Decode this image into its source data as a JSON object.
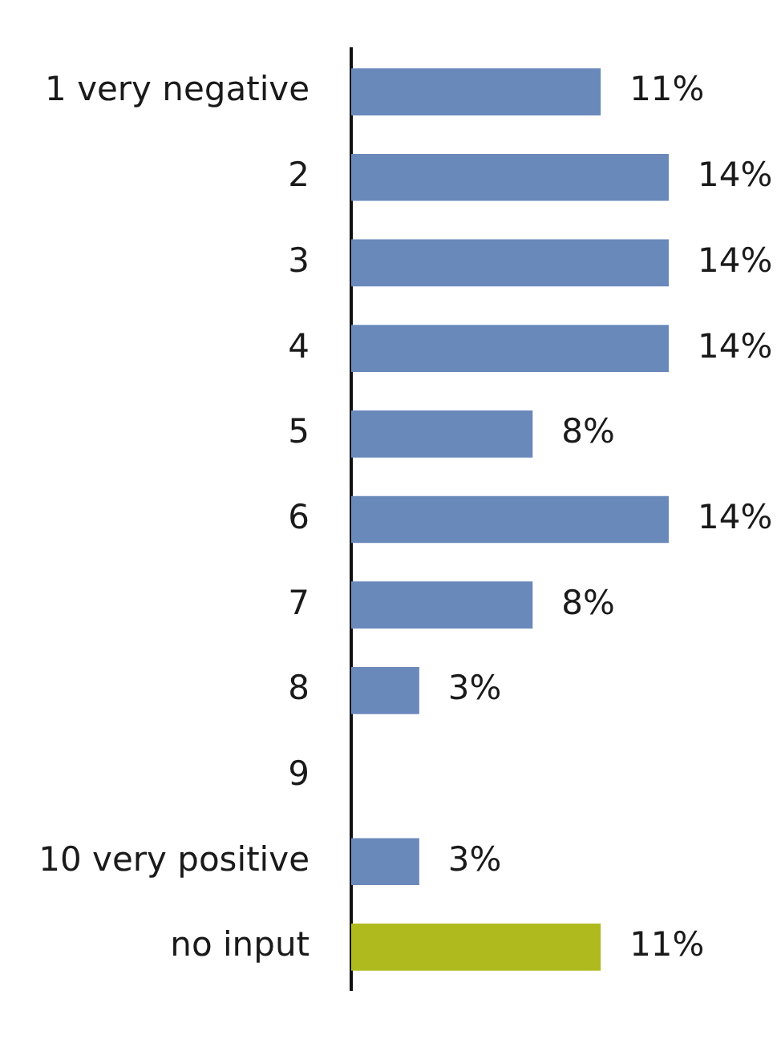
{
  "chart_data": {
    "type": "bar",
    "orientation": "horizontal",
    "categories": [
      "1 very negative",
      "2",
      "3",
      "4",
      "5",
      "6",
      "7",
      "8",
      "9",
      "10 very positive",
      "no input"
    ],
    "values": [
      11,
      14,
      14,
      14,
      8,
      14,
      8,
      3,
      0,
      3,
      11
    ],
    "value_labels": [
      "11%",
      "14%",
      "14%",
      "14%",
      "8%",
      "14%",
      "8%",
      "3%",
      null,
      "3%",
      "11%"
    ],
    "colors": [
      "#6a89bb",
      "#6a89bb",
      "#6a89bb",
      "#6a89bb",
      "#6a89bb",
      "#6a89bb",
      "#6a89bb",
      "#6a89bb",
      "#6a89bb",
      "#6a89bb",
      "#afba1e"
    ]
  }
}
